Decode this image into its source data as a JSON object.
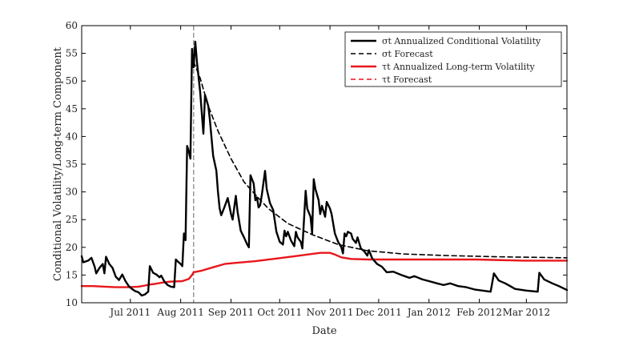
{
  "chart_data": {
    "type": "line",
    "title": "",
    "xlabel": "Date",
    "ylabel": "Conditional Volatility/Long-term Component",
    "ylim": [
      10,
      60
    ],
    "yticks": [
      10,
      15,
      20,
      25,
      30,
      35,
      40,
      45,
      50,
      55,
      60
    ],
    "xlim": [
      "2011-06-01",
      "2012-03-26"
    ],
    "xticks": [
      {
        "label": "Jul 2011",
        "date": "2011-07-01"
      },
      {
        "label": "Aug 2011",
        "date": "2011-08-01"
      },
      {
        "label": "Sep 2011",
        "date": "2011-09-01"
      },
      {
        "label": "Oct 2011",
        "date": "2011-10-01"
      },
      {
        "label": "Nov 2011",
        "date": "2011-11-01"
      },
      {
        "label": "Dec 2011",
        "date": "2011-12-01"
      },
      {
        "label": "Jan 2012",
        "date": "2012-01-01"
      },
      {
        "label": "Feb 2012",
        "date": "2012-02-01"
      },
      {
        "label": "Mar 2012",
        "date": "2012-03-01"
      }
    ],
    "grid": false,
    "legend_position": "top-right",
    "forecast_origin": "2011-08-09",
    "series": [
      {
        "name": "σt Annualized Conditional Volatility",
        "color": "#000000",
        "style": "solid",
        "points": [
          [
            "2011-06-01",
            18.4
          ],
          [
            "2011-06-02",
            17.3
          ],
          [
            "2011-06-05",
            17.6
          ],
          [
            "2011-06-07",
            18.1
          ],
          [
            "2011-06-09",
            16.5
          ],
          [
            "2011-06-10",
            15.3
          ],
          [
            "2011-06-12",
            16.3
          ],
          [
            "2011-06-14",
            17.0
          ],
          [
            "2011-06-15",
            15.3
          ],
          [
            "2011-06-16",
            18.3
          ],
          [
            "2011-06-18",
            17.0
          ],
          [
            "2011-06-20",
            16.3
          ],
          [
            "2011-06-22",
            14.7
          ],
          [
            "2011-06-24",
            14.1
          ],
          [
            "2011-06-26",
            15.1
          ],
          [
            "2011-06-28",
            13.9
          ],
          [
            "2011-06-30",
            13.0
          ],
          [
            "2011-07-02",
            12.5
          ],
          [
            "2011-07-04",
            12.1
          ],
          [
            "2011-07-06",
            11.9
          ],
          [
            "2011-07-08",
            11.3
          ],
          [
            "2011-07-10",
            11.5
          ],
          [
            "2011-07-12",
            12.0
          ],
          [
            "2011-07-13",
            16.6
          ],
          [
            "2011-07-15",
            15.4
          ],
          [
            "2011-07-17",
            15.1
          ],
          [
            "2011-07-19",
            14.6
          ],
          [
            "2011-07-20",
            14.9
          ],
          [
            "2011-07-22",
            13.8
          ],
          [
            "2011-07-24",
            13.2
          ],
          [
            "2011-07-26",
            12.9
          ],
          [
            "2011-07-28",
            12.8
          ],
          [
            "2011-07-29",
            17.8
          ],
          [
            "2011-07-30",
            17.5
          ],
          [
            "2011-08-01",
            17.0
          ],
          [
            "2011-08-02",
            16.6
          ],
          [
            "2011-08-03",
            22.5
          ],
          [
            "2011-08-04",
            21.3
          ],
          [
            "2011-08-05",
            38.3
          ],
          [
            "2011-08-06",
            37.3
          ],
          [
            "2011-08-07",
            36.0
          ],
          [
            "2011-08-08",
            55.8
          ],
          [
            "2011-08-09",
            52.5
          ],
          [
            "2011-08-10",
            57.1
          ],
          [
            "2011-08-11",
            53.5
          ],
          [
            "2011-08-13",
            48.0
          ],
          [
            "2011-08-15",
            40.5
          ],
          [
            "2011-08-16",
            47.5
          ],
          [
            "2011-08-18",
            45.5
          ],
          [
            "2011-08-19",
            43.0
          ],
          [
            "2011-08-21",
            36.5
          ],
          [
            "2011-08-23",
            33.8
          ],
          [
            "2011-08-24",
            30.0
          ],
          [
            "2011-08-25",
            27.0
          ],
          [
            "2011-08-26",
            25.8
          ],
          [
            "2011-08-28",
            27.3
          ],
          [
            "2011-08-30",
            28.9
          ],
          [
            "2011-09-01",
            26.0
          ],
          [
            "2011-09-02",
            25.0
          ],
          [
            "2011-09-04",
            29.3
          ],
          [
            "2011-09-05",
            26.5
          ],
          [
            "2011-09-07",
            23.0
          ],
          [
            "2011-09-09",
            21.8
          ],
          [
            "2011-09-11",
            20.5
          ],
          [
            "2011-09-12",
            20.0
          ],
          [
            "2011-09-13",
            33.0
          ],
          [
            "2011-09-15",
            31.5
          ],
          [
            "2011-09-16",
            28.5
          ],
          [
            "2011-09-17",
            29.0
          ],
          [
            "2011-09-18",
            27.2
          ],
          [
            "2011-09-19",
            27.6
          ],
          [
            "2011-09-20",
            29.5
          ],
          [
            "2011-09-22",
            33.8
          ],
          [
            "2011-09-23",
            30.5
          ],
          [
            "2011-09-25",
            28.0
          ],
          [
            "2011-09-27",
            26.7
          ],
          [
            "2011-09-29",
            22.8
          ],
          [
            "2011-10-01",
            21.0
          ],
          [
            "2011-10-03",
            20.5
          ],
          [
            "2011-10-04",
            23.0
          ],
          [
            "2011-10-05",
            22.0
          ],
          [
            "2011-10-06",
            22.8
          ],
          [
            "2011-10-08",
            21.2
          ],
          [
            "2011-10-10",
            20.2
          ],
          [
            "2011-10-11",
            22.8
          ],
          [
            "2011-10-12",
            21.8
          ],
          [
            "2011-10-14",
            21.0
          ],
          [
            "2011-10-15",
            19.8
          ],
          [
            "2011-10-17",
            30.2
          ],
          [
            "2011-10-18",
            27.0
          ],
          [
            "2011-10-20",
            25.5
          ],
          [
            "2011-10-21",
            22.5
          ],
          [
            "2011-10-22",
            32.3
          ],
          [
            "2011-10-23",
            30.5
          ],
          [
            "2011-10-25",
            28.5
          ],
          [
            "2011-10-26",
            26.0
          ],
          [
            "2011-10-27",
            27.5
          ],
          [
            "2011-10-29",
            25.5
          ],
          [
            "2011-10-30",
            28.2
          ],
          [
            "2011-11-01",
            27.0
          ],
          [
            "2011-11-02",
            26.0
          ],
          [
            "2011-11-04",
            22.5
          ],
          [
            "2011-11-06",
            21.0
          ],
          [
            "2011-11-08",
            20.0
          ],
          [
            "2011-11-09",
            18.9
          ],
          [
            "2011-11-10",
            22.5
          ],
          [
            "2011-11-11",
            22.0
          ],
          [
            "2011-11-12",
            22.8
          ],
          [
            "2011-11-14",
            22.5
          ],
          [
            "2011-11-15",
            21.5
          ],
          [
            "2011-11-17",
            20.8
          ],
          [
            "2011-11-18",
            21.8
          ],
          [
            "2011-11-20",
            19.8
          ],
          [
            "2011-11-22",
            19.3
          ],
          [
            "2011-11-24",
            18.5
          ],
          [
            "2011-11-25",
            19.5
          ],
          [
            "2011-11-27",
            18.0
          ],
          [
            "2011-11-30",
            17.0
          ],
          [
            "2011-12-03",
            16.5
          ],
          [
            "2011-12-06",
            15.5
          ],
          [
            "2011-12-10",
            15.6
          ],
          [
            "2011-12-15",
            15.0
          ],
          [
            "2011-12-20",
            14.5
          ],
          [
            "2011-12-23",
            14.8
          ],
          [
            "2011-12-28",
            14.2
          ],
          [
            "2012-01-01",
            13.9
          ],
          [
            "2012-01-06",
            13.5
          ],
          [
            "2012-01-10",
            13.2
          ],
          [
            "2012-01-14",
            13.5
          ],
          [
            "2012-01-19",
            13.0
          ],
          [
            "2012-01-24",
            12.8
          ],
          [
            "2012-01-29",
            12.4
          ],
          [
            "2012-02-03",
            12.2
          ],
          [
            "2012-02-08",
            12.0
          ],
          [
            "2012-02-10",
            15.3
          ],
          [
            "2012-02-13",
            14.0
          ],
          [
            "2012-02-17",
            13.5
          ],
          [
            "2012-02-20",
            13.0
          ],
          [
            "2012-02-23",
            12.5
          ],
          [
            "2012-03-01",
            12.2
          ],
          [
            "2012-03-08",
            12.0
          ],
          [
            "2012-03-09",
            15.4
          ],
          [
            "2012-03-12",
            14.2
          ],
          [
            "2012-03-17",
            13.5
          ],
          [
            "2012-03-21",
            13.0
          ],
          [
            "2012-03-26",
            12.3
          ]
        ]
      },
      {
        "name": "σt Forecast",
        "color": "#000000",
        "style": "dashed",
        "points": [
          [
            "2011-08-09",
            53.5
          ],
          [
            "2011-08-13",
            50.5
          ],
          [
            "2011-08-18",
            45.5
          ],
          [
            "2011-08-24",
            41.0
          ],
          [
            "2011-09-01",
            36.0
          ],
          [
            "2011-09-09",
            31.8
          ],
          [
            "2011-09-16",
            29.5
          ],
          [
            "2011-09-24",
            27.0
          ],
          [
            "2011-10-06",
            24.3
          ],
          [
            "2011-10-21",
            22.3
          ],
          [
            "2011-11-06",
            20.5
          ],
          [
            "2011-11-24",
            19.4
          ],
          [
            "2011-12-16",
            18.8
          ],
          [
            "2012-01-14",
            18.5
          ],
          [
            "2012-02-13",
            18.3
          ],
          [
            "2012-03-26",
            18.1
          ]
        ]
      },
      {
        "name": "τt Annualized Long-term Volatility",
        "color": "#e8171b",
        "style": "solid",
        "points": [
          [
            "2011-06-01",
            13.0
          ],
          [
            "2011-06-08",
            13.0
          ],
          [
            "2011-06-15",
            12.9
          ],
          [
            "2011-06-22",
            12.8
          ],
          [
            "2011-06-30",
            12.8
          ],
          [
            "2011-07-06",
            12.9
          ],
          [
            "2011-07-10",
            13.1
          ],
          [
            "2011-07-13",
            13.3
          ],
          [
            "2011-07-16",
            13.4
          ],
          [
            "2011-07-20",
            13.6
          ],
          [
            "2011-07-25",
            13.8
          ],
          [
            "2011-08-02",
            13.9
          ],
          [
            "2011-08-06",
            14.3
          ],
          [
            "2011-08-08",
            15.0
          ],
          [
            "2011-08-09",
            15.5
          ],
          [
            "2011-08-14",
            15.8
          ],
          [
            "2011-08-21",
            16.4
          ],
          [
            "2011-08-28",
            17.0
          ],
          [
            "2011-09-04",
            17.2
          ],
          [
            "2011-09-16",
            17.5
          ],
          [
            "2011-09-30",
            18.0
          ],
          [
            "2011-10-13",
            18.5
          ],
          [
            "2011-10-26",
            19.0
          ],
          [
            "2011-11-01",
            19.0
          ],
          [
            "2011-11-04",
            18.7
          ],
          [
            "2011-11-08",
            18.2
          ],
          [
            "2011-11-14",
            17.9
          ],
          [
            "2011-11-25",
            17.8
          ],
          [
            "2011-12-10",
            17.8
          ],
          [
            "2012-01-01",
            17.8
          ],
          [
            "2012-01-30",
            17.8
          ],
          [
            "2012-02-28",
            17.6
          ],
          [
            "2012-03-26",
            17.6
          ]
        ]
      },
      {
        "name": "τt Forecast",
        "color": "#e8171b",
        "style": "dashed",
        "points": [
          [
            "2011-08-09",
            15.5
          ],
          [
            "2011-08-14",
            15.8
          ],
          [
            "2011-08-21",
            16.4
          ],
          [
            "2011-08-28",
            17.0
          ],
          [
            "2011-09-04",
            17.2
          ],
          [
            "2011-09-16",
            17.5
          ],
          [
            "2011-09-30",
            18.0
          ],
          [
            "2011-10-13",
            18.5
          ],
          [
            "2011-10-26",
            19.0
          ],
          [
            "2011-11-01",
            19.0
          ],
          [
            "2011-11-04",
            18.7
          ],
          [
            "2011-11-08",
            18.2
          ],
          [
            "2011-11-14",
            17.9
          ],
          [
            "2011-11-25",
            17.8
          ],
          [
            "2011-12-10",
            17.8
          ],
          [
            "2012-01-01",
            17.8
          ],
          [
            "2012-01-30",
            17.8
          ],
          [
            "2012-02-28",
            17.6
          ],
          [
            "2012-03-26",
            17.6
          ]
        ]
      }
    ]
  }
}
